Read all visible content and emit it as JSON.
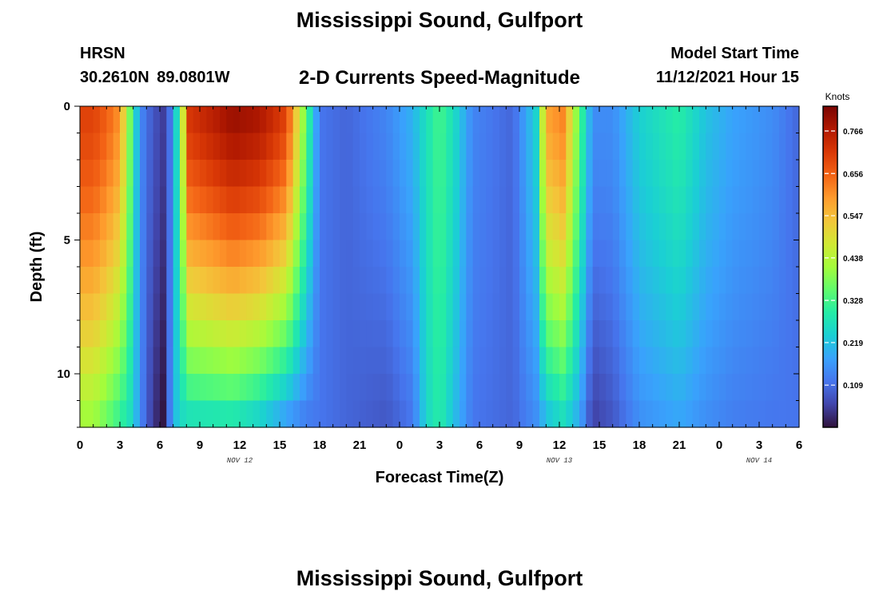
{
  "header": {
    "title": "Mississippi Sound, Gulfport",
    "station": "HRSN",
    "coordinates": "30.2610N  89.0801W",
    "subtitle": "2-D Currents Speed-Magnitude",
    "model_start_label": "Model Start Time",
    "model_start_value": "11/12/2021 Hour 15"
  },
  "footer": {
    "title": "Mississippi Sound, Gulfport"
  },
  "colors": {
    "scale": [
      "#30123b",
      "#4145ab",
      "#4675ed",
      "#39a2fc",
      "#1bcfd4",
      "#24eca6",
      "#61fc6c",
      "#a4fc3b",
      "#d1e834",
      "#f3c63a",
      "#fe9b2d",
      "#f36315",
      "#d93806",
      "#b11901",
      "#7a0402"
    ]
  },
  "chart_data": {
    "type": "heatmap",
    "xlabel": "Forecast Time(Z)",
    "ylabel": "Depth (ft)",
    "x_ticks": [
      "0",
      "3",
      "6",
      "9",
      "12",
      "15",
      "18",
      "21",
      "0",
      "3",
      "6",
      "9",
      "12",
      "15",
      "18",
      "21",
      "0",
      "3",
      "6"
    ],
    "x_range_hours": [
      0,
      54
    ],
    "date_labels": [
      {
        "label": "NOV 12",
        "hour": 12
      },
      {
        "label": "NOV 13",
        "hour": 36
      },
      {
        "label": "NOV 14",
        "hour": 51
      }
    ],
    "y_ticks": [
      "0",
      "5",
      "10"
    ],
    "y_range_ft": [
      0,
      12
    ],
    "y_inverted": true,
    "colorbar": {
      "label": "Knots",
      "ticks": [
        "0.766",
        "0.656",
        "0.547",
        "0.438",
        "0.328",
        "0.219",
        "0.109"
      ],
      "tick_values": [
        0.766,
        0.656,
        0.547,
        0.438,
        0.328,
        0.219,
        0.109
      ],
      "range": [
        0.0,
        0.83
      ]
    },
    "grid": "colorbar only",
    "profile_knots_by_hour": [
      {
        "hour": 0,
        "surface": 0.7,
        "bottom": 0.4
      },
      {
        "hour": 1,
        "surface": 0.7,
        "bottom": 0.4
      },
      {
        "hour": 2,
        "surface": 0.66,
        "bottom": 0.35
      },
      {
        "hour": 3,
        "surface": 0.6,
        "bottom": 0.3
      },
      {
        "hour": 4,
        "surface": 0.3,
        "bottom": 0.25
      },
      {
        "hour": 4.5,
        "surface": 0.15,
        "bottom": 0.15
      },
      {
        "hour": 5.5,
        "surface": 0.08,
        "bottom": 0.04
      },
      {
        "hour": 6.3,
        "surface": 0.05,
        "bottom": 0.0
      },
      {
        "hour": 7.0,
        "surface": 0.15,
        "bottom": 0.2
      },
      {
        "hour": 7.6,
        "surface": 0.4,
        "bottom": 0.25
      },
      {
        "hour": 8.2,
        "surface": 0.72,
        "bottom": 0.25
      },
      {
        "hour": 11.5,
        "surface": 0.8,
        "bottom": 0.26
      },
      {
        "hour": 13.5,
        "surface": 0.78,
        "bottom": 0.22
      },
      {
        "hour": 15.5,
        "surface": 0.7,
        "bottom": 0.15
      },
      {
        "hour": 17.0,
        "surface": 0.35,
        "bottom": 0.12
      },
      {
        "hour": 18.0,
        "surface": 0.12,
        "bottom": 0.12
      },
      {
        "hour": 20.0,
        "surface": 0.1,
        "bottom": 0.1
      },
      {
        "hour": 23.0,
        "surface": 0.14,
        "bottom": 0.08
      },
      {
        "hour": 25.0,
        "surface": 0.2,
        "bottom": 0.12
      },
      {
        "hour": 26.0,
        "surface": 0.27,
        "bottom": 0.25
      },
      {
        "hour": 27.0,
        "surface": 0.33,
        "bottom": 0.3
      },
      {
        "hour": 28.0,
        "surface": 0.27,
        "bottom": 0.22
      },
      {
        "hour": 29.5,
        "surface": 0.14,
        "bottom": 0.12
      },
      {
        "hour": 32.5,
        "surface": 0.1,
        "bottom": 0.1
      },
      {
        "hour": 34.3,
        "surface": 0.25,
        "bottom": 0.15
      },
      {
        "hour": 35.0,
        "surface": 0.58,
        "bottom": 0.2
      },
      {
        "hour": 36.3,
        "surface": 0.62,
        "bottom": 0.25
      },
      {
        "hour": 37.5,
        "surface": 0.35,
        "bottom": 0.18
      },
      {
        "hour": 38.5,
        "surface": 0.15,
        "bottom": 0.05
      },
      {
        "hour": 40.0,
        "surface": 0.15,
        "bottom": 0.08
      },
      {
        "hour": 42.0,
        "surface": 0.24,
        "bottom": 0.15
      },
      {
        "hour": 45.0,
        "surface": 0.3,
        "bottom": 0.18
      },
      {
        "hour": 47.0,
        "surface": 0.22,
        "bottom": 0.15
      },
      {
        "hour": 49.0,
        "surface": 0.18,
        "bottom": 0.13
      },
      {
        "hour": 52.0,
        "surface": 0.15,
        "bottom": 0.12
      },
      {
        "hour": 54.0,
        "surface": 0.1,
        "bottom": 0.12
      }
    ]
  }
}
